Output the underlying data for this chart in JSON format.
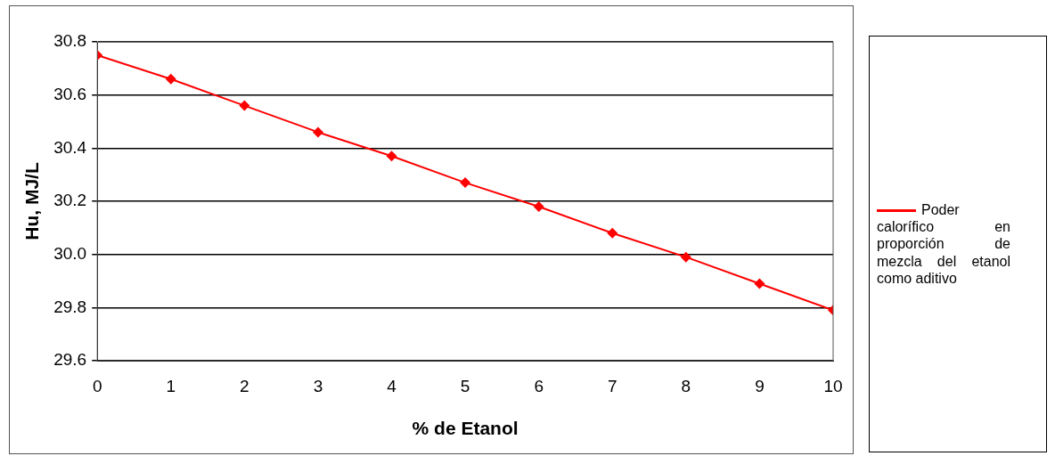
{
  "chart_data": {
    "type": "line",
    "xlabel": "% de Etanol",
    "ylabel": "Hu, MJ/L",
    "x": [
      0,
      1,
      2,
      3,
      4,
      5,
      6,
      7,
      8,
      9,
      10
    ],
    "series": [
      {
        "name": "Poder calorífico en proporción de mezcla del etanol como aditivo",
        "color": "#ff0000",
        "values": [
          30.75,
          30.66,
          30.56,
          30.46,
          30.37,
          30.27,
          30.18,
          30.08,
          29.99,
          29.89,
          29.79
        ]
      }
    ],
    "xlim": [
      0,
      10
    ],
    "xticks": [
      0,
      1,
      2,
      3,
      4,
      5,
      6,
      7,
      8,
      9,
      10
    ],
    "ylim": [
      29.6,
      30.8
    ],
    "yticks": [
      29.6,
      29.8,
      {
        "value": 30,
        "label": "30.0"
      },
      30.2,
      30.4,
      30.6,
      30.8
    ],
    "grid": "y",
    "legend": "right",
    "marker": "diamond",
    "line_style": "solid"
  }
}
